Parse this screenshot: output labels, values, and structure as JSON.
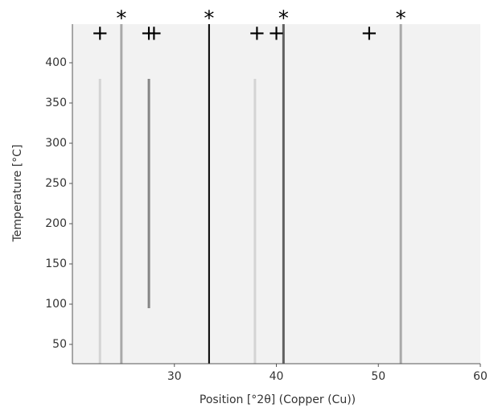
{
  "chart_data": {
    "type": "streak-map",
    "x_label": "Position [°2θ] (Copper (Cu))",
    "y_label": "Temperature [°C]",
    "xlim": [
      20,
      60
    ],
    "ylim": [
      26,
      448
    ],
    "xticks": [
      30,
      40,
      50,
      60
    ],
    "yticks": [
      50,
      100,
      150,
      200,
      250,
      300,
      350,
      400
    ],
    "background": "#f2f2f2",
    "streaks": [
      {
        "x": 22.7,
        "y": [
          26,
          380
        ],
        "intensity": 0.12
      },
      {
        "x": 24.8,
        "y": [
          26,
          448
        ],
        "intensity": 0.3
      },
      {
        "x": 27.5,
        "y": [
          95,
          380
        ],
        "intensity": 0.45
      },
      {
        "x": 33.4,
        "y": [
          26,
          448
        ],
        "intensity": 1
      },
      {
        "x": 37.9,
        "y": [
          26,
          380
        ],
        "intensity": 0.12
      },
      {
        "x": 40.7,
        "y": [
          26,
          448
        ],
        "intensity": 0.6
      },
      {
        "x": 52.2,
        "y": [
          26,
          448
        ],
        "intensity": 0.3
      }
    ],
    "markers": [
      {
        "symbol": "+",
        "x": 22.7
      },
      {
        "symbol": "*",
        "x": 24.8
      },
      {
        "symbol": "+",
        "x": 27.5
      },
      {
        "symbol": "+",
        "x": 28.0
      },
      {
        "symbol": "*",
        "x": 33.4
      },
      {
        "symbol": "+",
        "x": 38.1
      },
      {
        "symbol": "+",
        "x": 40.0
      },
      {
        "symbol": "*",
        "x": 40.7
      },
      {
        "symbol": "+",
        "x": 49.1
      },
      {
        "symbol": "*",
        "x": 52.2
      }
    ]
  }
}
